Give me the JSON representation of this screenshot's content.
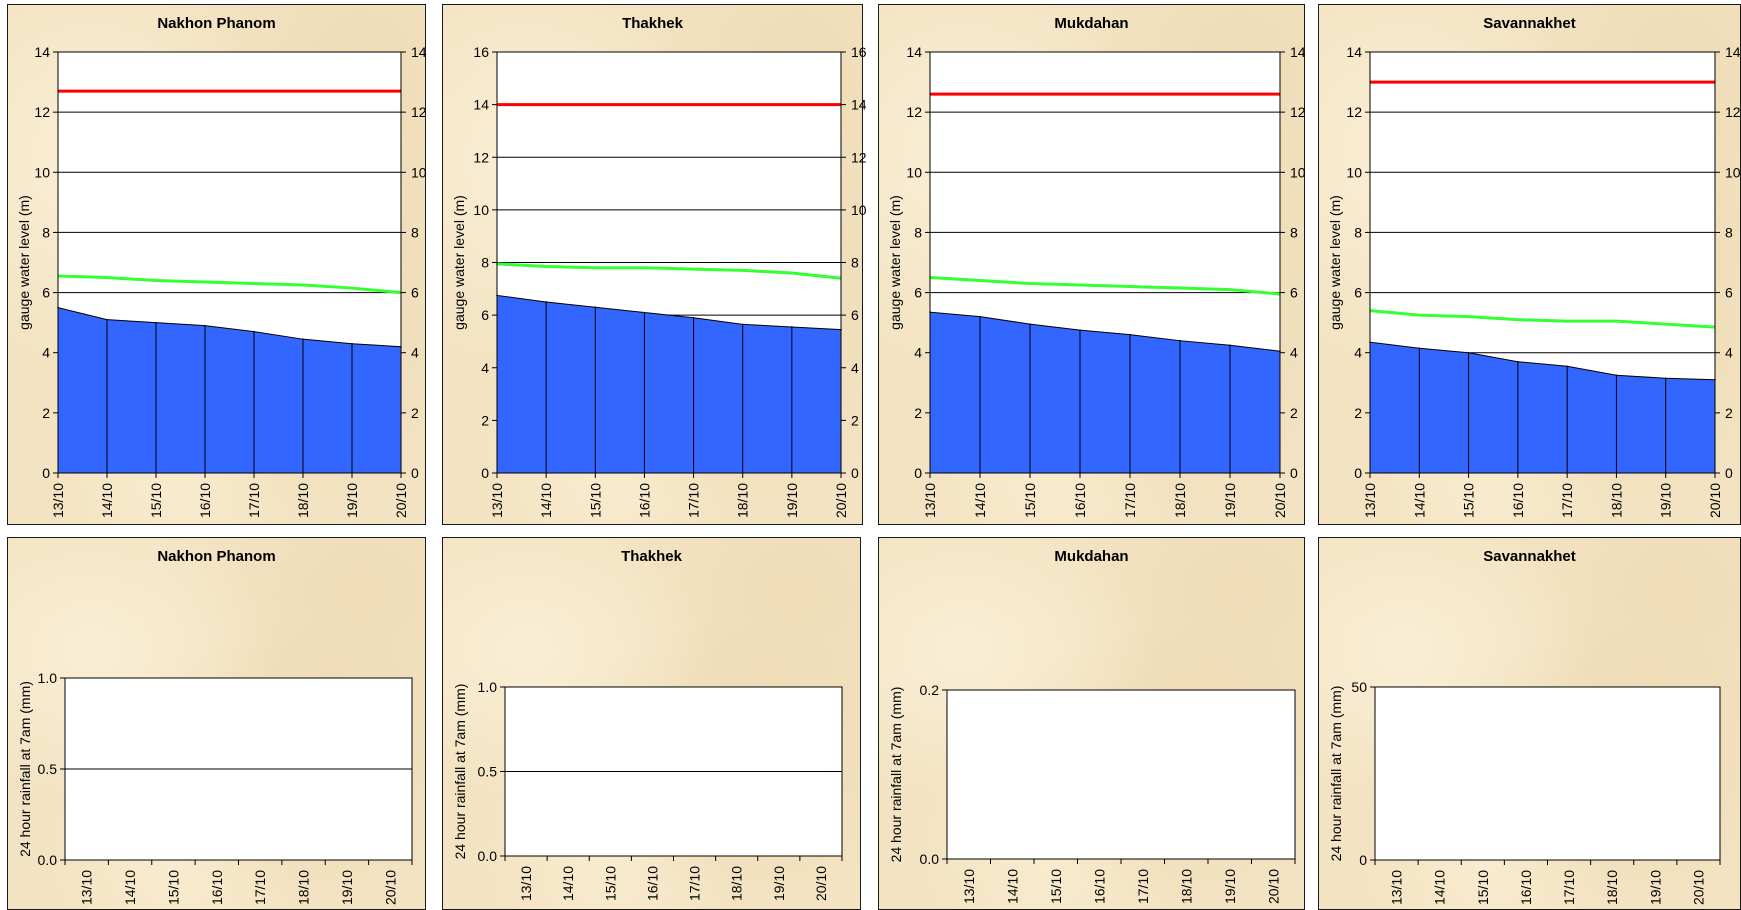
{
  "chart_data": [
    {
      "type": "area",
      "title": "Nakhon Phanom",
      "ylabel": "gauge water level (m)",
      "categories": [
        "13/10",
        "14/10",
        "15/10",
        "16/10",
        "17/10",
        "18/10",
        "19/10",
        "20/10"
      ],
      "ylim": [
        0,
        14
      ],
      "yticks": [
        "0",
        "2",
        "4",
        "6",
        "8",
        "10",
        "12",
        "14"
      ],
      "ytick_values": [
        0,
        2,
        4,
        6,
        8,
        10,
        12,
        14
      ],
      "secondary_axis": true,
      "grid": true,
      "series": [
        {
          "values": [
            5.5,
            5.1,
            5.0,
            4.9,
            4.7,
            4.45,
            4.3,
            4.2
          ],
          "color": "#3366ff",
          "kind": "area"
        },
        {
          "values": [
            6.55,
            6.5,
            6.4,
            6.35,
            6.3,
            6.25,
            6.15,
            6.0
          ],
          "color": "#33ff33",
          "kind": "line"
        },
        {
          "values": [
            12.7,
            12.7,
            12.7,
            12.7,
            12.7,
            12.7,
            12.7,
            12.7
          ],
          "color": "#ff0000",
          "kind": "line"
        }
      ]
    },
    {
      "type": "area",
      "title": "Thakhek",
      "ylabel": "gauge water level (m)",
      "categories": [
        "13/10",
        "14/10",
        "15/10",
        "16/10",
        "17/10",
        "18/10",
        "19/10",
        "20/10"
      ],
      "ylim": [
        0,
        16
      ],
      "yticks": [
        "0",
        "2",
        "4",
        "6",
        "8",
        "10",
        "12",
        "14",
        "16"
      ],
      "ytick_values": [
        0,
        2,
        4,
        6,
        8,
        10,
        12,
        14,
        16
      ],
      "secondary_axis": true,
      "grid": true,
      "series": [
        {
          "values": [
            6.75,
            6.5,
            6.3,
            6.1,
            5.9,
            5.65,
            5.55,
            5.45
          ],
          "color": "#3366ff",
          "kind": "area"
        },
        {
          "values": [
            7.95,
            7.85,
            7.8,
            7.8,
            7.75,
            7.7,
            7.6,
            7.4
          ],
          "color": "#33ff33",
          "kind": "line"
        },
        {
          "values": [
            14.0,
            14.0,
            14.0,
            14.0,
            14.0,
            14.0,
            14.0,
            14.0
          ],
          "color": "#ff0000",
          "kind": "line"
        }
      ]
    },
    {
      "type": "area",
      "title": "Mukdahan",
      "ylabel": "gauge water level (m)",
      "categories": [
        "13/10",
        "14/10",
        "15/10",
        "16/10",
        "17/10",
        "18/10",
        "19/10",
        "20/10"
      ],
      "ylim": [
        0,
        14
      ],
      "yticks": [
        "0",
        "2",
        "4",
        "6",
        "8",
        "10",
        "12",
        "14"
      ],
      "ytick_values": [
        0,
        2,
        4,
        6,
        8,
        10,
        12,
        14
      ],
      "secondary_axis": true,
      "grid": true,
      "series": [
        {
          "values": [
            5.35,
            5.2,
            4.95,
            4.75,
            4.6,
            4.4,
            4.25,
            4.05
          ],
          "color": "#3366ff",
          "kind": "area"
        },
        {
          "values": [
            6.5,
            6.4,
            6.3,
            6.25,
            6.2,
            6.15,
            6.1,
            5.95
          ],
          "color": "#33ff33",
          "kind": "line"
        },
        {
          "values": [
            12.6,
            12.6,
            12.6,
            12.6,
            12.6,
            12.6,
            12.6,
            12.6
          ],
          "color": "#ff0000",
          "kind": "line"
        }
      ]
    },
    {
      "type": "area",
      "title": "Savannakhet",
      "ylabel": "gauge water level (m)",
      "categories": [
        "13/10",
        "14/10",
        "15/10",
        "16/10",
        "17/10",
        "18/10",
        "19/10",
        "20/10"
      ],
      "ylim": [
        0,
        14
      ],
      "yticks": [
        "0",
        "2",
        "4",
        "6",
        "8",
        "10",
        "12",
        "14"
      ],
      "ytick_values": [
        0,
        2,
        4,
        6,
        8,
        10,
        12,
        14
      ],
      "secondary_axis": true,
      "grid": true,
      "series": [
        {
          "values": [
            4.35,
            4.15,
            4.0,
            3.7,
            3.55,
            3.25,
            3.15,
            3.1
          ],
          "color": "#3366ff",
          "kind": "area"
        },
        {
          "values": [
            5.4,
            5.25,
            5.2,
            5.1,
            5.05,
            5.05,
            4.95,
            4.85
          ],
          "color": "#33ff33",
          "kind": "line"
        },
        {
          "values": [
            13.0,
            13.0,
            13.0,
            13.0,
            13.0,
            13.0,
            13.0,
            13.0
          ],
          "color": "#ff0000",
          "kind": "line"
        }
      ]
    },
    {
      "type": "bar",
      "title": "Nakhon Phanom",
      "ylabel": "24 hour rainfall at 7am (mm)",
      "categories": [
        "13/10",
        "14/10",
        "15/10",
        "16/10",
        "17/10",
        "18/10",
        "19/10",
        "20/10"
      ],
      "ylim": [
        0,
        1
      ],
      "yticks": [
        "0.0",
        "0.5",
        "1.0"
      ],
      "ytick_values": [
        0,
        0.5,
        1.0
      ],
      "grid": true,
      "series": [
        {
          "values": [
            0,
            0,
            0,
            0,
            0,
            0,
            0,
            0
          ]
        }
      ]
    },
    {
      "type": "bar",
      "title": "Thakhek",
      "ylabel": "24 hour rainfall at 7am (mm)",
      "categories": [
        "13/10",
        "14/10",
        "15/10",
        "16/10",
        "17/10",
        "18/10",
        "19/10",
        "20/10"
      ],
      "ylim": [
        0,
        1
      ],
      "yticks": [
        "0.0",
        "0.5",
        "1.0"
      ],
      "ytick_values": [
        0,
        0.5,
        1.0
      ],
      "grid": true,
      "series": [
        {
          "values": [
            0,
            0,
            0,
            0,
            0,
            0,
            0,
            0
          ]
        }
      ]
    },
    {
      "type": "bar",
      "title": "Mukdahan",
      "ylabel": "24 hour rainfall at 7am (mm)",
      "categories": [
        "13/10",
        "14/10",
        "15/10",
        "16/10",
        "17/10",
        "18/10",
        "19/10",
        "20/10"
      ],
      "ylim": [
        0,
        0.2
      ],
      "yticks": [
        "0.0",
        "0.2"
      ],
      "ytick_values": [
        0,
        0.2
      ],
      "grid": false,
      "series": [
        {
          "values": [
            0,
            0,
            0,
            0,
            0,
            0,
            0,
            0
          ]
        }
      ]
    },
    {
      "type": "bar",
      "title": "Savannakhet",
      "ylabel": "24 hour rainfall at 7am (mm)",
      "categories": [
        "13/10",
        "14/10",
        "15/10",
        "16/10",
        "17/10",
        "18/10",
        "19/10",
        "20/10"
      ],
      "ylim": [
        0,
        50
      ],
      "yticks": [
        "0",
        "50"
      ],
      "ytick_values": [
        0,
        50
      ],
      "grid": false,
      "series": [
        {
          "values": [
            0,
            0,
            0,
            0,
            0,
            0,
            0,
            0
          ]
        }
      ]
    }
  ]
}
